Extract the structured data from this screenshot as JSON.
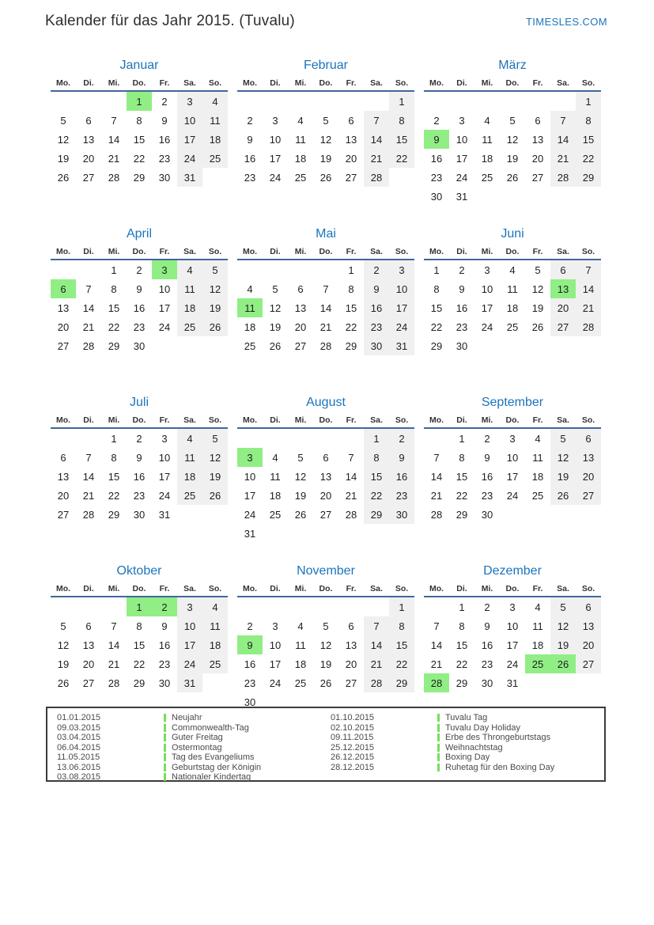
{
  "header": {
    "title": "Kalender für das Jahr 2015. (Tuvalu)",
    "brand": "TIMESLES.COM"
  },
  "colors": {
    "accent_blue": "#1b74bc",
    "header_line": "#41679b",
    "holiday_green": "#90ee85",
    "weekend_gray": "#f0f0f0",
    "legend_bar_green": "#76df5b"
  },
  "weekdays": [
    "Mo.",
    "Di.",
    "Mi.",
    "Do.",
    "Fr.",
    "Sa.",
    "So."
  ],
  "months": [
    {
      "name": "Januar",
      "holidays": [
        1
      ],
      "weeks": [
        [
          "",
          "",
          "",
          1,
          2,
          3,
          4
        ],
        [
          5,
          6,
          7,
          8,
          9,
          10,
          11
        ],
        [
          12,
          13,
          14,
          15,
          16,
          17,
          18
        ],
        [
          19,
          20,
          21,
          22,
          23,
          24,
          25
        ],
        [
          26,
          27,
          28,
          29,
          30,
          31,
          ""
        ]
      ]
    },
    {
      "name": "Februar",
      "holidays": [],
      "weeks": [
        [
          "",
          "",
          "",
          "",
          "",
          "",
          1
        ],
        [
          2,
          3,
          4,
          5,
          6,
          7,
          8
        ],
        [
          9,
          10,
          11,
          12,
          13,
          14,
          15
        ],
        [
          16,
          17,
          18,
          19,
          20,
          21,
          22
        ],
        [
          23,
          24,
          25,
          26,
          27,
          28,
          ""
        ]
      ]
    },
    {
      "name": "März",
      "holidays": [
        9
      ],
      "weeks": [
        [
          "",
          "",
          "",
          "",
          "",
          "",
          1
        ],
        [
          2,
          3,
          4,
          5,
          6,
          7,
          8
        ],
        [
          9,
          10,
          11,
          12,
          13,
          14,
          15
        ],
        [
          16,
          17,
          18,
          19,
          20,
          21,
          22
        ],
        [
          23,
          24,
          25,
          26,
          27,
          28,
          29
        ],
        [
          30,
          31,
          "",
          "",
          "",
          "",
          ""
        ]
      ]
    },
    {
      "name": "April",
      "holidays": [
        3,
        6
      ],
      "weeks": [
        [
          "",
          "",
          1,
          2,
          3,
          4,
          5
        ],
        [
          6,
          7,
          8,
          9,
          10,
          11,
          12
        ],
        [
          13,
          14,
          15,
          16,
          17,
          18,
          19
        ],
        [
          20,
          21,
          22,
          23,
          24,
          25,
          26
        ],
        [
          27,
          28,
          29,
          30,
          "",
          "",
          ""
        ]
      ]
    },
    {
      "name": "Mai",
      "holidays": [
        11
      ],
      "weeks": [
        [
          "",
          "",
          "",
          "",
          1,
          2,
          3
        ],
        [
          4,
          5,
          6,
          7,
          8,
          9,
          10
        ],
        [
          11,
          12,
          13,
          14,
          15,
          16,
          17
        ],
        [
          18,
          19,
          20,
          21,
          22,
          23,
          24
        ],
        [
          25,
          26,
          27,
          28,
          29,
          30,
          31
        ]
      ]
    },
    {
      "name": "Juni",
      "holidays": [
        13
      ],
      "weeks": [
        [
          1,
          2,
          3,
          4,
          5,
          6,
          7
        ],
        [
          8,
          9,
          10,
          11,
          12,
          13,
          14
        ],
        [
          15,
          16,
          17,
          18,
          19,
          20,
          21
        ],
        [
          22,
          23,
          24,
          25,
          26,
          27,
          28
        ],
        [
          29,
          30,
          "",
          "",
          "",
          "",
          ""
        ]
      ]
    },
    {
      "name": "Juli",
      "holidays": [],
      "weeks": [
        [
          "",
          "",
          1,
          2,
          3,
          4,
          5
        ],
        [
          6,
          7,
          8,
          9,
          10,
          11,
          12
        ],
        [
          13,
          14,
          15,
          16,
          17,
          18,
          19
        ],
        [
          20,
          21,
          22,
          23,
          24,
          25,
          26
        ],
        [
          27,
          28,
          29,
          30,
          31,
          "",
          ""
        ]
      ]
    },
    {
      "name": "August",
      "holidays": [
        3
      ],
      "weeks": [
        [
          "",
          "",
          "",
          "",
          "",
          1,
          2
        ],
        [
          3,
          4,
          5,
          6,
          7,
          8,
          9
        ],
        [
          10,
          11,
          12,
          13,
          14,
          15,
          16
        ],
        [
          17,
          18,
          19,
          20,
          21,
          22,
          23
        ],
        [
          24,
          25,
          26,
          27,
          28,
          29,
          30
        ],
        [
          31,
          "",
          "",
          "",
          "",
          "",
          ""
        ]
      ]
    },
    {
      "name": "September",
      "holidays": [],
      "weeks": [
        [
          "",
          1,
          2,
          3,
          4,
          5,
          6
        ],
        [
          7,
          8,
          9,
          10,
          11,
          12,
          13
        ],
        [
          14,
          15,
          16,
          17,
          18,
          19,
          20
        ],
        [
          21,
          22,
          23,
          24,
          25,
          26,
          27
        ],
        [
          28,
          29,
          30,
          "",
          "",
          "",
          ""
        ]
      ]
    },
    {
      "name": "Oktober",
      "holidays": [
        1,
        2
      ],
      "weeks": [
        [
          "",
          "",
          "",
          1,
          2,
          3,
          4
        ],
        [
          5,
          6,
          7,
          8,
          9,
          10,
          11
        ],
        [
          12,
          13,
          14,
          15,
          16,
          17,
          18
        ],
        [
          19,
          20,
          21,
          22,
          23,
          24,
          25
        ],
        [
          26,
          27,
          28,
          29,
          30,
          31,
          ""
        ]
      ]
    },
    {
      "name": "November",
      "holidays": [
        9
      ],
      "weeks": [
        [
          "",
          "",
          "",
          "",
          "",
          "",
          1
        ],
        [
          2,
          3,
          4,
          5,
          6,
          7,
          8
        ],
        [
          9,
          10,
          11,
          12,
          13,
          14,
          15
        ],
        [
          16,
          17,
          18,
          19,
          20,
          21,
          22
        ],
        [
          23,
          24,
          25,
          26,
          27,
          28,
          29
        ],
        [
          30,
          "",
          "",
          "",
          "",
          "",
          ""
        ]
      ]
    },
    {
      "name": "Dezember",
      "holidays": [
        25,
        26,
        28
      ],
      "weeks": [
        [
          "",
          1,
          2,
          3,
          4,
          5,
          6
        ],
        [
          7,
          8,
          9,
          10,
          11,
          12,
          13
        ],
        [
          14,
          15,
          16,
          17,
          18,
          19,
          20
        ],
        [
          21,
          22,
          23,
          24,
          25,
          26,
          27
        ],
        [
          28,
          29,
          30,
          31,
          "",
          "",
          ""
        ]
      ]
    }
  ],
  "legend": {
    "columns": [
      [
        {
          "date": "01.01.2015",
          "name": "Neujahr"
        },
        {
          "date": "09.03.2015",
          "name": "Commonwealth-Tag"
        },
        {
          "date": "03.04.2015",
          "name": "Guter Freitag"
        },
        {
          "date": "06.04.2015",
          "name": "Ostermontag"
        },
        {
          "date": "11.05.2015",
          "name": "Tag des Evangeliums"
        },
        {
          "date": "13.06.2015",
          "name": "Geburtstag der Königin"
        },
        {
          "date": "03.08.2015",
          "name": "Nationaler Kindertag"
        }
      ],
      [
        {
          "date": "01.10.2015",
          "name": "Tuvalu Tag"
        },
        {
          "date": "02.10.2015",
          "name": "Tuvalu Day Holiday"
        },
        {
          "date": "09.11.2015",
          "name": "Erbe des Throngeburtstags"
        },
        {
          "date": "25.12.2015",
          "name": "Weihnachtstag"
        },
        {
          "date": "26.12.2015",
          "name": "Boxing Day"
        },
        {
          "date": "28.12.2015",
          "name": "Ruhetag für den Boxing Day"
        }
      ]
    ]
  }
}
